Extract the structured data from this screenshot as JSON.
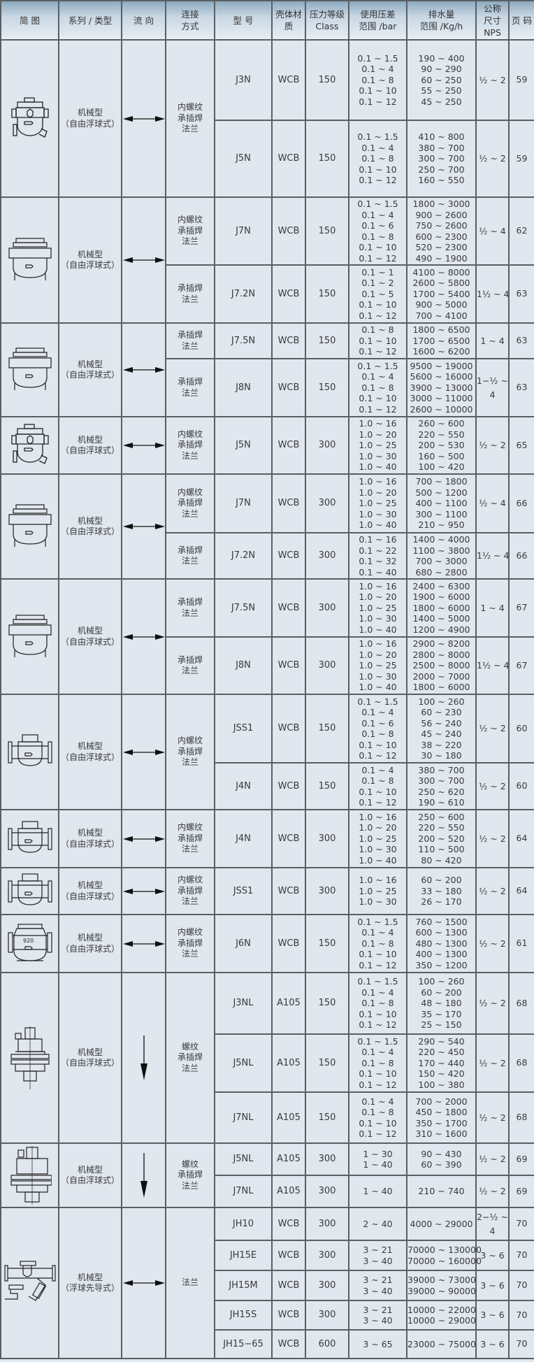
{
  "header": {
    "image": "简 图",
    "series": "系列 / 类型",
    "flow": "流 向",
    "connection": [
      "连接",
      "方式"
    ],
    "model": "型 号",
    "material": [
      "壳体材",
      "质"
    ],
    "class": [
      "压力等级",
      "Class"
    ],
    "pressure": [
      "使用压差",
      "范围 /bar"
    ],
    "capacity": [
      "排水量",
      "范围 /Kg/h"
    ],
    "nps": [
      "公称",
      "尺寸",
      "NPS"
    ],
    "page": "页 码"
  },
  "colors": {
    "cell_bg": "#e0e7ee",
    "header_top": "#8eaac0",
    "border": "#5a5f63",
    "text": "#3a3a3a"
  },
  "groups": [
    {
      "icon": "compact-float-trap",
      "series": "机械型",
      "subtype": "（自由浮球式）",
      "flow": "bidirectional",
      "connection": [
        "内螺纹",
        "承插焊",
        "法兰"
      ],
      "rows": [
        {
          "model": "J3N",
          "material": "WCB",
          "class": "150",
          "pressure": [
            "0.1 ~ 1.5",
            "0.1 ~ 4",
            "0.1 ~ 8",
            "0.1 ~ 10",
            "0.1 ~ 12"
          ],
          "capacity": [
            "190 ~ 400",
            "90 ~ 290",
            "60 ~ 250",
            "55 ~ 250",
            "45 ~ 250"
          ],
          "nps": [
            "½ ~ 2"
          ],
          "page": "59"
        },
        {
          "model": "J5N",
          "material": "WCB",
          "class": "150",
          "pressure": [
            "0.1 ~ 1.5",
            "0.1 ~ 4",
            "0.1 ~ 8",
            "0.1 ~ 10",
            "0.1 ~ 12"
          ],
          "capacity": [
            "410 ~ 800",
            "380 ~ 700",
            "300 ~ 700",
            "250 ~ 700",
            "160 ~ 550"
          ],
          "nps": [
            "½ ~ 2"
          ],
          "page": "59"
        }
      ]
    },
    {
      "icon": "large-float-trap",
      "series": "机械型",
      "subtype": "（自由浮球式）",
      "flow": "bidirectional",
      "rows": [
        {
          "connection": [
            "内螺纹",
            "承插焊",
            "法兰"
          ],
          "model": "J7N",
          "material": "WCB",
          "class": "150",
          "pressure": [
            "0.1 ~ 1.5",
            "0.1 ~ 4",
            "0.1 ~ 6",
            "0.1 ~ 8",
            "0.1 ~ 10",
            "0.1 ~ 12"
          ],
          "capacity": [
            "1800 ~ 3000",
            "900 ~ 2600",
            "750 ~ 2600",
            "600 ~ 2300",
            "520 ~ 2300",
            "490 ~ 1900"
          ],
          "nps": [
            "½ ~ 4"
          ],
          "page": "62"
        },
        {
          "connection": [
            "承插焊",
            "法兰"
          ],
          "model": "J7.2N",
          "material": "WCB",
          "class": "150",
          "pressure": [
            "0.1 ~ 1",
            "0.1 ~ 2",
            "0.1 ~ 5",
            "0.1 ~ 10",
            "0.1 ~ 12"
          ],
          "capacity": [
            "4100 ~ 8000",
            "2600 ~ 5800",
            "1700 ~ 5400",
            "900 ~ 5000",
            "700 ~ 4100"
          ],
          "nps": [
            "1½ ~ 4"
          ],
          "page": "63"
        }
      ]
    },
    {
      "icon": "large-float-trap",
      "series": "机械型",
      "subtype": "（自由浮球式）",
      "flow": "bidirectional",
      "rows": [
        {
          "connection": [
            "承插焊",
            "法兰"
          ],
          "model": "J7.5N",
          "material": "WCB",
          "class": "150",
          "pressure": [
            "0.1 ~ 8",
            "0.1 ~ 10",
            "0.1 ~ 12"
          ],
          "capacity": [
            "1800 ~ 6500",
            "1700 ~ 6500",
            "1600 ~ 6200"
          ],
          "nps": [
            "1 ~ 4"
          ],
          "page": "63"
        },
        {
          "connection": [
            "承插焊",
            "法兰"
          ],
          "model": "J8N",
          "material": "WCB",
          "class": "150",
          "pressure": [
            "0.1 ~ 1.5",
            "0.1 ~ 4",
            "0.1 ~ 8",
            "0.1 ~ 10",
            "0.1 ~ 12"
          ],
          "capacity": [
            "9500 ~ 19000",
            "5600 ~ 16000",
            "3900 ~ 13000",
            "3000 ~ 11000",
            "2600 ~ 10000"
          ],
          "nps": [
            "1−½ ~",
            "4"
          ],
          "page": "63"
        }
      ]
    },
    {
      "icon": "compact-float-trap",
      "series": "机械型",
      "subtype": "（自由浮球式）",
      "flow": "bidirectional",
      "connection": [
        "内螺纹",
        "承插焊",
        "法兰"
      ],
      "rows": [
        {
          "model": "J5N",
          "material": "WCB",
          "class": "300",
          "pressure": [
            "1.0 ~ 16",
            "1.0 ~ 20",
            "1.0 ~ 25",
            "1.0 ~ 30",
            "1.0 ~ 40"
          ],
          "capacity": [
            "260 ~ 600",
            "220 ~ 550",
            "200 ~ 530",
            "160 ~ 500",
            "100 ~ 420"
          ],
          "nps": [
            "½ ~ 2"
          ],
          "page": "65"
        }
      ]
    },
    {
      "icon": "large-float-trap",
      "series": "机械型",
      "subtype": "（自由浮球式）",
      "flow": "bidirectional",
      "rows": [
        {
          "connection": [
            "内螺纹",
            "承插焊",
            "法兰"
          ],
          "model": "J7N",
          "material": "WCB",
          "class": "300",
          "pressure": [
            "1.0 ~ 16",
            "1.0 ~ 20",
            "1.0 ~ 25",
            "1.0 ~ 30",
            "1.0 ~ 40"
          ],
          "capacity": [
            "700 ~ 1800",
            "500 ~ 1200",
            "400 ~ 1100",
            "300 ~ 1100",
            "210 ~ 950"
          ],
          "nps": [
            "½ ~ 4"
          ],
          "page": "66"
        },
        {
          "connection": [
            "承插焊",
            "法兰"
          ],
          "model": "J7.2N",
          "material": "WCB",
          "class": "300",
          "pressure": [
            "0.1 ~ 16",
            "0.1 ~ 22",
            "0.1 ~ 32",
            "0.1 ~ 40"
          ],
          "capacity": [
            "1400 ~ 4000",
            "1100 ~ 3800",
            "700 ~ 3000",
            "680 ~ 2800"
          ],
          "nps": [
            "1½ ~ 4"
          ],
          "page": "66"
        }
      ]
    },
    {
      "icon": "large-float-trap",
      "series": "机械型",
      "subtype": "（自由浮球式）",
      "flow": "bidirectional",
      "rows": [
        {
          "connection": [
            "承插焊",
            "法兰"
          ],
          "model": "J7.5N",
          "material": "WCB",
          "class": "300",
          "pressure": [
            "1.0 ~ 16",
            "1.0 ~ 20",
            "1.0 ~ 25",
            "1.0 ~ 30",
            "1.0 ~ 40"
          ],
          "capacity": [
            "2400 ~ 6300",
            "1900 ~ 6000",
            "1800 ~ 6000",
            "1400 ~ 5000",
            "1200 ~ 4900"
          ],
          "nps": [
            "1 ~ 4"
          ],
          "page": "67"
        },
        {
          "connection": [
            "承插焊",
            "法兰"
          ],
          "model": "J8N",
          "material": "WCB",
          "class": "300",
          "pressure": [
            "1.0 ~ 16",
            "1.0 ~ 20",
            "1.0 ~ 25",
            "1.0 ~ 30",
            "1.0 ~ 40"
          ],
          "capacity": [
            "2900 ~ 8200",
            "2800 ~ 8000",
            "2500 ~ 8000",
            "2000 ~ 7000",
            "1800 ~ 6000"
          ],
          "nps": [
            "1½ ~ 4"
          ],
          "page": "67"
        }
      ]
    },
    {
      "icon": "inline-float-trap",
      "series": "机械型",
      "subtype": "（自由浮球式）",
      "flow": "bidirectional",
      "connection": [
        "内螺纹",
        "承插焊",
        "法兰"
      ],
      "rows": [
        {
          "model": "JSS1",
          "material": "WCB",
          "class": "150",
          "pressure": [
            "0.1 ~ 1.5",
            "0.1 ~ 4",
            "0.1 ~ 6",
            "0.1 ~ 8",
            "0.1 ~ 10",
            "0.1 ~ 12"
          ],
          "capacity": [
            "100 ~ 260",
            "60 ~ 230",
            "56 ~ 240",
            "45 ~ 240",
            "38 ~ 220",
            "30 ~ 180"
          ],
          "nps": [
            "½ ~ 2"
          ],
          "page": "60"
        },
        {
          "model": "J4N",
          "material": "WCB",
          "class": "150",
          "pressure": [
            "0.1 ~ 4",
            "0.1 ~ 8",
            "0.1 ~ 10",
            "0.1 ~ 12"
          ],
          "capacity": [
            "380 ~ 700",
            "300 ~ 700",
            "250 ~ 620",
            "190 ~ 610"
          ],
          "nps": [
            "½ ~ 2"
          ],
          "page": "60"
        }
      ]
    },
    {
      "icon": "inline-float-trap",
      "series": "机械型",
      "subtype": "（自由浮球式）",
      "flow": "bidirectional",
      "connection": [
        "内螺纹",
        "承插焊",
        "法兰"
      ],
      "rows": [
        {
          "model": "J4N",
          "material": "WCB",
          "class": "300",
          "pressure": [
            "1.0 ~ 16",
            "1.0 ~ 20",
            "1.0 ~ 25",
            "1.0 ~ 30",
            "1.0 ~ 40"
          ],
          "capacity": [
            "250 ~ 600",
            "220 ~ 550",
            "200 ~ 520",
            "110 ~ 500",
            "80 ~ 420"
          ],
          "nps": [
            "½ ~ 2"
          ],
          "page": "64"
        }
      ]
    },
    {
      "icon": "inline-float-trap",
      "series": "机械型",
      "subtype": "（自由浮球式）",
      "flow": "bidirectional",
      "connection": [
        "内螺纹",
        "承插焊",
        "法兰"
      ],
      "rows": [
        {
          "model": "JSS1",
          "material": "WCB",
          "class": "300",
          "pressure": [
            "1.0 ~ 16",
            "1.0 ~ 25",
            "1.0 ~ 30"
          ],
          "capacity": [
            "60 ~ 200",
            "33 ~ 180",
            "26 ~ 170"
          ],
          "nps": [
            "½ ~ 2"
          ],
          "page": "64"
        }
      ]
    },
    {
      "icon": "flanged-float-trap",
      "series": "机械型",
      "subtype": "（自由浮球式）",
      "flow": "bidirectional",
      "connection": [
        "内螺纹",
        "承插焊",
        "法兰"
      ],
      "rows": [
        {
          "model": "J6N",
          "material": "WCB",
          "class": "150",
          "pressure": [
            "0.1 ~ 1.5",
            "0.1 ~ 4",
            "0.1 ~ 8",
            "0.1 ~ 10",
            "0.1 ~ 12"
          ],
          "capacity": [
            "760 ~ 1500",
            "600 ~ 1300",
            "480 ~ 1300",
            "400 ~ 1300",
            "350 ~ 1200"
          ],
          "nps": [
            "½ ~ 2"
          ],
          "page": "61"
        }
      ]
    },
    {
      "icon": "vertical-float-trap",
      "series": "机械型",
      "subtype": "（自由浮球式）",
      "flow": "down",
      "connection": [
        "螺纹",
        "承插焊",
        "法兰"
      ],
      "rows": [
        {
          "model": "J3NL",
          "material": "A105",
          "class": "150",
          "pressure": [
            "0.1 ~ 1.5",
            "0.1 ~ 4",
            "0.1 ~ 8",
            "0.1 ~ 10",
            "0.1 ~ 12"
          ],
          "capacity": [
            "100 ~ 260",
            "60 ~ 200",
            "48 ~ 180",
            "35 ~ 170",
            "25 ~ 150"
          ],
          "nps": [
            "½ ~ 2"
          ],
          "page": "68"
        },
        {
          "model": "J5NL",
          "material": "A105",
          "class": "150",
          "pressure": [
            "0.1 ~ 1.5",
            "0.1 ~ 4",
            "0.1 ~ 8",
            "0.1 ~ 10",
            "0.1 ~ 12"
          ],
          "capacity": [
            "290 ~ 540",
            "220 ~ 450",
            "170 ~ 440",
            "150 ~ 420",
            "100 ~ 380"
          ],
          "nps": [
            "½ ~ 2"
          ],
          "page": "68"
        },
        {
          "model": "J7NL",
          "material": "A105",
          "class": "150",
          "pressure": [
            "0.1 ~ 4",
            "0.1 ~ 8",
            "0.1 ~ 10",
            "0.1 ~ 12"
          ],
          "capacity": [
            "700 ~ 2000",
            "450 ~ 1800",
            "350 ~ 1700",
            "310 ~ 1600"
          ],
          "nps": [
            "½ ~ 2"
          ],
          "page": "68"
        }
      ]
    },
    {
      "icon": "vertical-flanged-float-trap",
      "series": "机械型",
      "subtype": "（自由浮球式）",
      "flow": "down",
      "connection": [
        "螺纹",
        "承插焊",
        "法兰"
      ],
      "rows": [
        {
          "model": "J5NL",
          "material": "A105",
          "class": "300",
          "pressure": [
            "1 ~ 30",
            "1 ~ 40"
          ],
          "capacity": [
            "90 ~ 430",
            "60 ~ 390"
          ],
          "nps": [
            "½ ~ 2"
          ],
          "page": "69"
        },
        {
          "model": "J7NL",
          "material": "A105",
          "class": "300",
          "pressure": [
            "1 ~ 40"
          ],
          "capacity": [
            "210 ~ 740"
          ],
          "nps": [
            "½ ~ 2"
          ],
          "page": "69"
        }
      ]
    },
    {
      "icon": "pilot-float-trap",
      "series": "机械型",
      "subtype": "（浮球先导式）",
      "flow": "bidirectional",
      "connection": [
        "法兰"
      ],
      "rows": [
        {
          "model": "JH10",
          "material": "WCB",
          "class": "300",
          "pressure": [
            "2 ~ 40"
          ],
          "capacity": [
            "4000 ~ 29000"
          ],
          "nps": [
            "2−½ ~",
            "4"
          ],
          "page": "70"
        },
        {
          "model": "JH15E",
          "material": "WCB",
          "class": "300",
          "pressure": [
            "3 ~ 21",
            "3 ~ 40"
          ],
          "capacity": [
            "70000 ~ 130000",
            "70000 ~ 160000"
          ],
          "nps": [
            "3 ~ 6"
          ],
          "page": "70"
        },
        {
          "model": "JH15M",
          "material": "WCB",
          "class": "300",
          "pressure": [
            "3 ~ 21",
            "3 ~ 40"
          ],
          "capacity": [
            "39000 ~ 73000",
            "39000 ~ 90000"
          ],
          "nps": [
            "3 ~ 6"
          ],
          "page": "70"
        },
        {
          "model": "JH15S",
          "material": "WCB",
          "class": "300",
          "pressure": [
            "3 ~ 21",
            "3 ~ 40"
          ],
          "capacity": [
            "10000 ~ 22000",
            "10000 ~ 29000"
          ],
          "nps": [
            "3 ~ 6"
          ],
          "page": "70"
        },
        {
          "model": "JH15−65",
          "material": "WCB",
          "class": "600",
          "pressure": [
            "3 ~ 65"
          ],
          "capacity": [
            "23000 ~ 75000"
          ],
          "nps": [
            "3 ~ 6"
          ],
          "page": "70"
        }
      ]
    }
  ]
}
